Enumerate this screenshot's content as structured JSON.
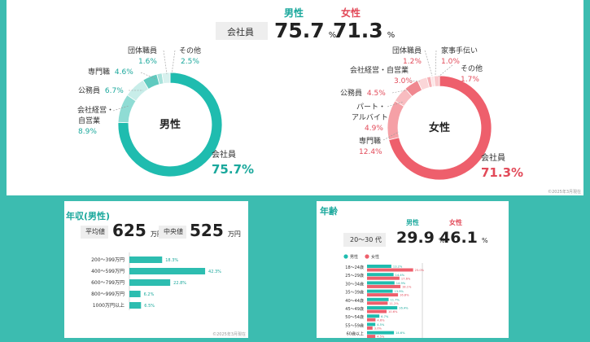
{
  "top": {
    "header": {
      "male_label": "男性",
      "female_label": "女性",
      "row_label": "会社員",
      "male_value": "75.7",
      "female_value": "71.3",
      "unit": "%"
    },
    "footnote": "©2025年3月現在"
  },
  "chart_data": [
    {
      "type": "pie",
      "title": "",
      "center_label": "男性",
      "labels": [
        "会社員",
        "会社経営・自営業",
        "公務員",
        "専門職",
        "団体職員",
        "その他"
      ],
      "values": [
        75.7,
        8.9,
        6.7,
        4.6,
        1.6,
        2.5
      ],
      "display": {
        "company": {
          "name": "会社員",
          "value": "75.7%"
        },
        "exec": {
          "name1": "会社経営・",
          "name2": "自営業",
          "value": "8.9%"
        },
        "civil": {
          "name": "公務員",
          "value": "6.7%"
        },
        "prof": {
          "name": "専門職",
          "value": "4.6%"
        },
        "org": {
          "name": "団体職員",
          "value": "1.6%"
        },
        "other": {
          "name": "その他",
          "value": "2.5%"
        }
      },
      "colors": [
        "#1fbcaf",
        "#8fdcd4",
        "#c8ede9",
        "#5fcabf",
        "#a8e2db",
        "#d7f1ee"
      ]
    },
    {
      "type": "pie",
      "title": "",
      "center_label": "女性",
      "labels": [
        "会社員",
        "専門職",
        "パート・アルバイト",
        "公務員",
        "会社経営・自営業",
        "団体職員",
        "家事手伝い",
        "その他"
      ],
      "values": [
        71.3,
        12.4,
        4.9,
        4.5,
        3.0,
        1.2,
        1.0,
        1.7
      ],
      "display": {
        "company": {
          "name": "会社員",
          "value": "71.3%"
        },
        "prof": {
          "name": "専門職",
          "value": "12.4%"
        },
        "part": {
          "name1": "パート・",
          "name2": "アルバイト",
          "value": "4.9%"
        },
        "civil": {
          "name": "公務員",
          "value": "4.5%"
        },
        "exec": {
          "name": "会社経営・自営業",
          "value": "3.0%"
        },
        "org": {
          "name": "団体職員",
          "value": "1.2%"
        },
        "house": {
          "name": "家事手伝い",
          "value": "1.0%"
        },
        "other": {
          "name": "その他",
          "value": "1.7%"
        }
      },
      "colors": [
        "#ee5f6c",
        "#f5a0a6",
        "#f8bcc0",
        "#f08890",
        "#fbd6d8",
        "#f6b0b5",
        "#fce4e5",
        "#f9c9cc"
      ]
    },
    {
      "type": "bar",
      "orientation": "horizontal",
      "title": "年収(男性)",
      "categories": [
        "200～399万円",
        "400～599万円",
        "600～799万円",
        "800～999万円",
        "1000万円以上"
      ],
      "values": [
        18.3,
        42.3,
        22.8,
        6.2,
        6.5
      ],
      "value_labels": [
        "18.3%",
        "42.3%",
        "22.8%",
        "6.2%",
        "6.5%"
      ],
      "xlim": [
        0,
        50
      ]
    },
    {
      "type": "bar",
      "orientation": "horizontal",
      "title": "年齢",
      "categories": [
        "18～24歳",
        "25～29歳",
        "30～34歳",
        "35～39歳",
        "40～44歳",
        "45～49歳",
        "50～54歳",
        "55～59歳",
        "60歳以上"
      ],
      "series": [
        {
          "name": "男性",
          "values": [
            13.2,
            14.4,
            14.9,
            13.9,
            11.7,
            16.4,
            6.7,
            4.5,
            14.6
          ],
          "labels": [
            "13.2%",
            "14.4%",
            "14.9%",
            "13.9%",
            "11.7%",
            "16.4%",
            "6.7%",
            "4.5%",
            "14.6%"
          ]
        },
        {
          "name": "女性",
          "values": [
            25.0,
            17.6,
            18.1,
            16.8,
            11.2,
            10.6,
            4.6,
            3.0,
            4.5
          ],
          "labels": [
            "25.0%",
            "17.6%",
            "18.1%",
            "16.8%",
            "11.2%",
            "10.6%",
            "4.6%",
            "3.0%",
            "4.5%"
          ]
        }
      ],
      "xlim": [
        0,
        30
      ]
    }
  ],
  "income": {
    "title": "年収(男性)",
    "avg_label": "平均値",
    "avg_value": "625",
    "median_label": "中央値",
    "median_value": "525",
    "unit": "万円",
    "footnote": "©2025年3月現在"
  },
  "age": {
    "title": "年齢",
    "male_label": "男性",
    "female_label": "女性",
    "range_label": "20～30 代",
    "male_value": "29.9",
    "female_value": "46.1",
    "unit": "%",
    "legend_male": "男性",
    "legend_female": "女性"
  },
  "colors": {
    "teal": "#1fbcaf",
    "pink": "#ee5f6c",
    "male_text": "#1aa89c",
    "female_text": "#e24a59"
  }
}
